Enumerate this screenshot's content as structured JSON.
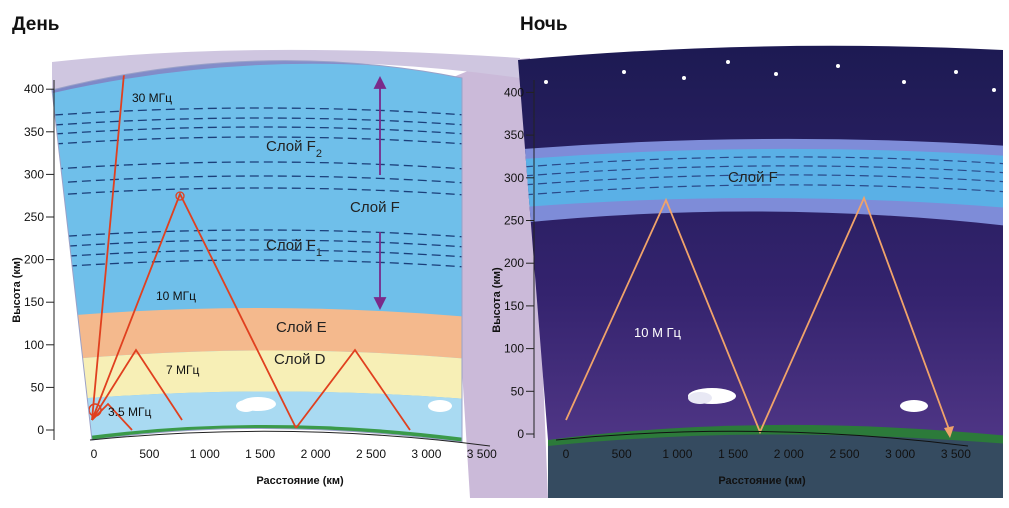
{
  "panels": {
    "day": {
      "title": "День",
      "layers": {
        "f2": "Слой F",
        "f2_sub": "2",
        "f": "Слой F",
        "f1": "Слой F",
        "f1_sub": "1",
        "e": "Слой E",
        "d": "Слой D"
      },
      "frequencies": [
        "30 МГц",
        "10 МГц",
        "7 МГц",
        "3.5 МГц"
      ]
    },
    "night": {
      "title": "Ночь",
      "layers": {
        "f": "Слой F"
      },
      "frequencies": [
        "10 М Гц"
      ]
    }
  },
  "axes": {
    "y_label": "Высота (км)",
    "x_label": "Расстояние (км)",
    "y_ticks": [
      "0",
      "50",
      "100",
      "150",
      "200",
      "250",
      "300",
      "350",
      "400"
    ],
    "x_ticks": [
      "0",
      "500",
      "1 000",
      "1 500",
      "2 000",
      "2 500",
      "3 000",
      "3 500"
    ]
  },
  "colors": {
    "day_sky": "#6fbfea",
    "f_region": "#5cb2e4",
    "e_layer": "#f4b98d",
    "d_layer": "#f7efb6",
    "night_sky": "#2a1f64",
    "night_band": "#7e8cd8",
    "ray": "#e0401f",
    "night_ray": "#f0a36a",
    "divider": "#cbbad9"
  }
}
